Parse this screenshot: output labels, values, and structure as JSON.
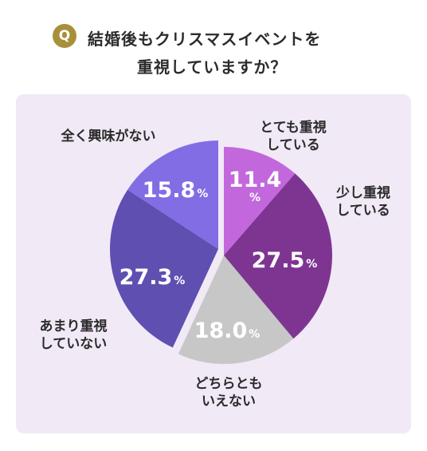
{
  "header": {
    "badge": "Q",
    "title_line1": "結婚後もクリスマスイベントを",
    "title_line2": "重視していますか？"
  },
  "chart_data": {
    "type": "pie",
    "title": "結婚後もクリスマスイベントを重視していますか？",
    "unit": "%",
    "slices": [
      {
        "label_lines": [
          "とても重視",
          "している"
        ],
        "value": 11.4,
        "value_text": "11.4",
        "color": "#c268dc",
        "exploded": false
      },
      {
        "label_lines": [
          "少し重視",
          "している"
        ],
        "value": 27.5,
        "value_text": "27.5",
        "color": "#7e3592",
        "exploded": false
      },
      {
        "label_lines": [
          "どちらとも",
          "いえない"
        ],
        "value": 18.0,
        "value_text": "18.0",
        "color": "#c7c7c7",
        "exploded": false
      },
      {
        "label_lines": [
          "あまり重視",
          "していない"
        ],
        "value": 27.3,
        "value_text": "27.3",
        "color": "#5e4fb1",
        "exploded": true
      },
      {
        "label_lines": [
          "全く興味がない"
        ],
        "value": 15.8,
        "value_text": "15.8",
        "color": "#826de4",
        "exploded": true
      }
    ]
  }
}
